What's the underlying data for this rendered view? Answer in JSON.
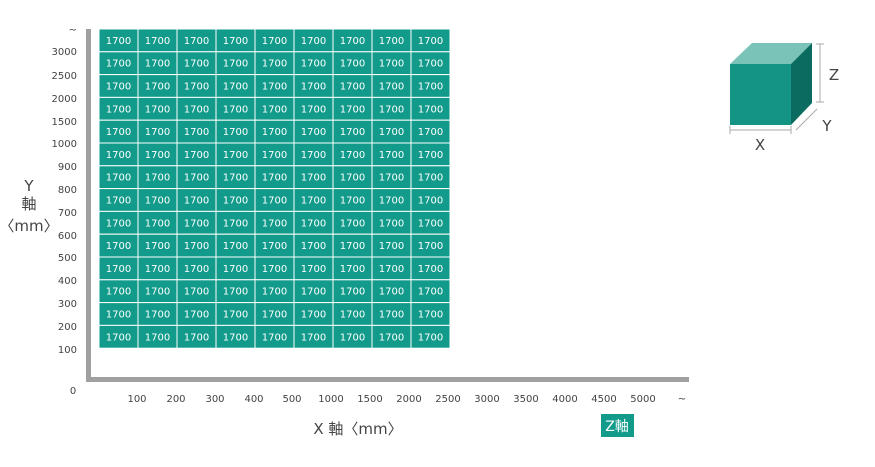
{
  "chart_data": {
    "type": "heatmap",
    "title": "",
    "cell_value": "1700",
    "x_ticks": [
      "100",
      "200",
      "300",
      "400",
      "500",
      "1000",
      "1500",
      "2000",
      "2500",
      "3000",
      "3500",
      "4000",
      "4500",
      "5000",
      "~"
    ],
    "y_ticks": [
      "~",
      "3000",
      "2500",
      "2000",
      "1500",
      "1000",
      "900",
      "800",
      "700",
      "600",
      "500",
      "400",
      "300",
      "200",
      "100"
    ],
    "origin_label": "0",
    "x_categories": [
      "100",
      "200",
      "300",
      "400",
      "500",
      "1000",
      "1500",
      "2000",
      "2500"
    ],
    "y_categories": [
      "3000",
      "2500",
      "2000",
      "1500",
      "1000",
      "900",
      "800",
      "700",
      "600",
      "500",
      "400",
      "300",
      "200",
      "100"
    ],
    "values": [
      [
        1700,
        1700,
        1700,
        1700,
        1700,
        1700,
        1700,
        1700,
        1700
      ],
      [
        1700,
        1700,
        1700,
        1700,
        1700,
        1700,
        1700,
        1700,
        1700
      ],
      [
        1700,
        1700,
        1700,
        1700,
        1700,
        1700,
        1700,
        1700,
        1700
      ],
      [
        1700,
        1700,
        1700,
        1700,
        1700,
        1700,
        1700,
        1700,
        1700
      ],
      [
        1700,
        1700,
        1700,
        1700,
        1700,
        1700,
        1700,
        1700,
        1700
      ],
      [
        1700,
        1700,
        1700,
        1700,
        1700,
        1700,
        1700,
        1700,
        1700
      ],
      [
        1700,
        1700,
        1700,
        1700,
        1700,
        1700,
        1700,
        1700,
        1700
      ],
      [
        1700,
        1700,
        1700,
        1700,
        1700,
        1700,
        1700,
        1700,
        1700
      ],
      [
        1700,
        1700,
        1700,
        1700,
        1700,
        1700,
        1700,
        1700,
        1700
      ],
      [
        1700,
        1700,
        1700,
        1700,
        1700,
        1700,
        1700,
        1700,
        1700
      ],
      [
        1700,
        1700,
        1700,
        1700,
        1700,
        1700,
        1700,
        1700,
        1700
      ],
      [
        1700,
        1700,
        1700,
        1700,
        1700,
        1700,
        1700,
        1700,
        1700
      ],
      [
        1700,
        1700,
        1700,
        1700,
        1700,
        1700,
        1700,
        1700,
        1700
      ],
      [
        1700,
        1700,
        1700,
        1700,
        1700,
        1700,
        1700,
        1700,
        1700
      ]
    ],
    "xlabel": "X 軸〈mm〉",
    "ylabel_lines": [
      "Y",
      "軸",
      "〈mm〉"
    ],
    "z_label": "Z軸",
    "grid": true
  },
  "cube": {
    "x_label": "X",
    "y_label": "Y",
    "z_label": "Z"
  },
  "colors": {
    "cell": "#129b8b",
    "cell_border": "#ffffff",
    "axis": "#a0a0a0",
    "cube_front": "#139484",
    "cube_top": "#79c3b8",
    "cube_side": "#0c6b60",
    "badge": "#129b8b"
  }
}
